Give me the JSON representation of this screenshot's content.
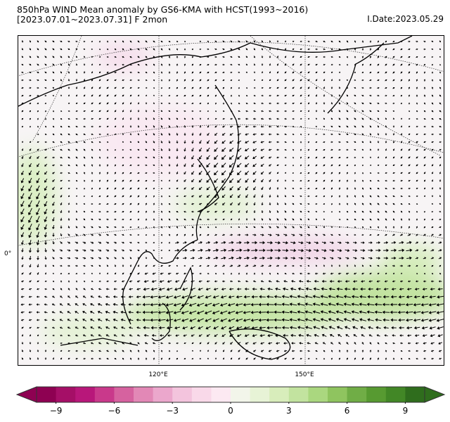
{
  "title_line1": "850hPa WIND Mean anomaly by GS6-KMA with HCST(1993~2016)",
  "title_line2": "[2023.07.01~2023.07.31] F 2mon",
  "init_date": "I.Date:2023.05.29",
  "map": {
    "lon_labels": [
      "120°E",
      "150°E"
    ],
    "lat_labels": [
      "0°"
    ]
  },
  "colorbar": {
    "min": -10,
    "max": 10,
    "extend": "both",
    "tick_labels": [
      "−9",
      "−6",
      "−3",
      "0",
      "3",
      "6",
      "9"
    ],
    "tick_values": [
      -9,
      -6,
      -3,
      0,
      3,
      6,
      9
    ],
    "colors": [
      "#8e0152",
      "#a50f67",
      "#b8177a",
      "#c9398b",
      "#d6629f",
      "#e288b6",
      "#eba7cc",
      "#f3c4dd",
      "#f9d9e9",
      "#fce9f2",
      "#f2f5ea",
      "#e7f3d6",
      "#d8edbb",
      "#c2e39f",
      "#aad77f",
      "#8fc45f",
      "#70ad46",
      "#579a31",
      "#428726",
      "#2f6d1d"
    ]
  }
}
